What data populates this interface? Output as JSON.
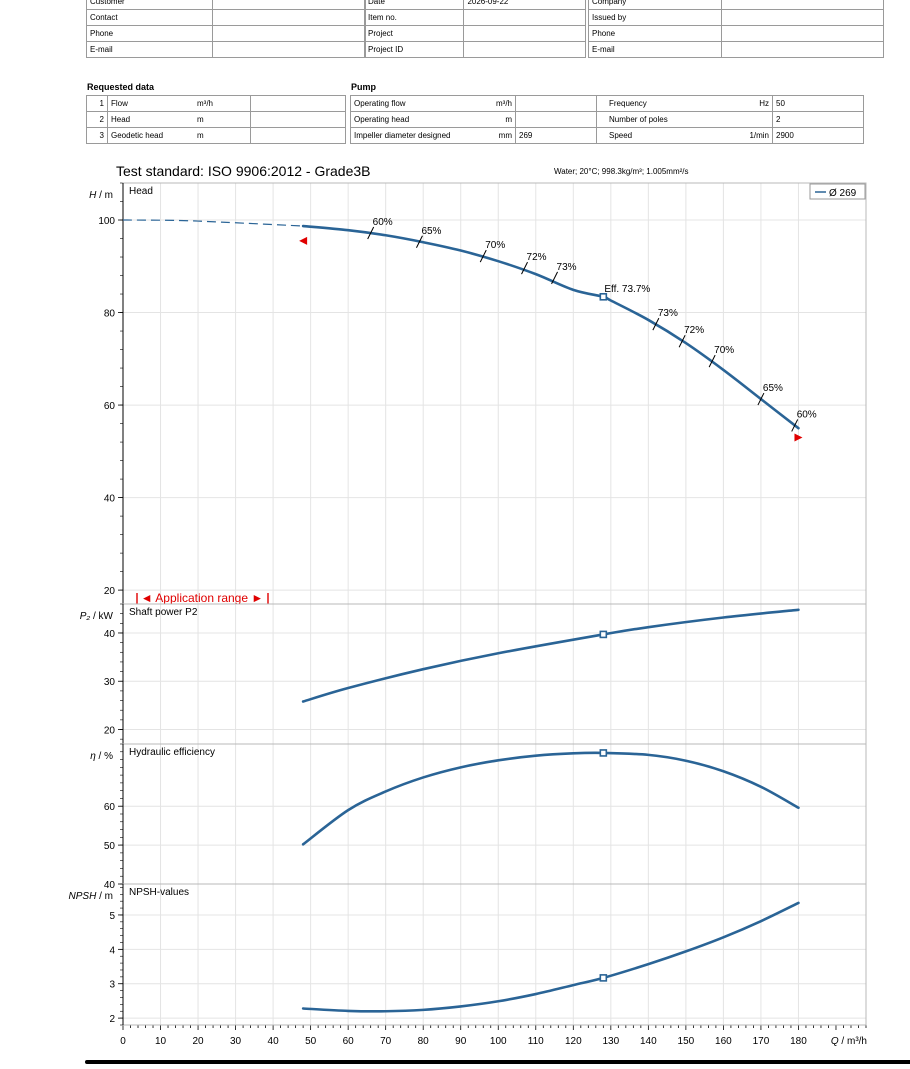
{
  "header": {
    "left_rows": [
      {
        "label": "Customer",
        "value": ""
      },
      {
        "label": "Contact",
        "value": ""
      },
      {
        "label": "Phone",
        "value": ""
      },
      {
        "label": "E-mail",
        "value": ""
      }
    ],
    "mid_rows": [
      {
        "label": "Date",
        "value": "2026-09-22"
      },
      {
        "label": "Item no.",
        "value": ""
      },
      {
        "label": "Project",
        "value": ""
      },
      {
        "label": "Project ID",
        "value": ""
      }
    ],
    "right_rows": [
      {
        "label": "Company",
        "value": ""
      },
      {
        "label": "Issued by",
        "value": ""
      },
      {
        "label": "Phone",
        "value": ""
      },
      {
        "label": "E-mail",
        "value": ""
      }
    ]
  },
  "requested": {
    "title": "Requested data",
    "rows": [
      {
        "n": "1",
        "label": "Flow",
        "unit": "m³/h",
        "value": ""
      },
      {
        "n": "2",
        "label": "Head",
        "unit": "m",
        "value": ""
      },
      {
        "n": "3",
        "label": "Geodetic head",
        "unit": "m",
        "value": ""
      }
    ]
  },
  "pump": {
    "title": "Pump",
    "left_rows": [
      {
        "label": "Operating flow",
        "unit": "m³/h",
        "value": ""
      },
      {
        "label": "Operating head",
        "unit": "m",
        "value": ""
      },
      {
        "label": "Impeller diameter designed",
        "unit": "mm",
        "value": "269"
      }
    ],
    "right_rows": [
      {
        "label": "Frequency",
        "unit": "Hz",
        "value": "50"
      },
      {
        "label": "Number of poles",
        "unit": "",
        "value": "2"
      },
      {
        "label": "Speed",
        "unit": "1/min",
        "value": "2900"
      }
    ]
  },
  "test_standard": "Test standard: ISO 9906:2012 - Grade3B",
  "fluid": "Water; 20°C; 998.3kg/m³; 1.005mm²/s",
  "colors": {
    "curve": "#2a6496",
    "marker": "#e00000",
    "grid": "#e4e4e4",
    "axis": "#000000"
  },
  "chart_data": [
    {
      "type": "line",
      "title": "Head",
      "ylabel_sym": "H",
      "ylabel_unit": "m",
      "ylim": [
        17,
        108
      ],
      "yticks": [
        20,
        40,
        60,
        80,
        100
      ],
      "xlim": [
        0,
        198
      ],
      "legend": "Ø 269",
      "legend_position": "top-right",
      "application_range_label": "Application range",
      "dashed_x": [
        0,
        15,
        30,
        48
      ],
      "dashed_y": [
        100,
        99.9,
        99.4,
        98.7
      ],
      "x": [
        48,
        60,
        70,
        80,
        90,
        100,
        110,
        120,
        128,
        130,
        140,
        150,
        160,
        170,
        180
      ],
      "y": [
        98.7,
        97.8,
        96.7,
        95.2,
        93.4,
        91.1,
        88.3,
        84.9,
        83.4,
        82.6,
        78.4,
        73.4,
        67.6,
        61.3,
        55.0
      ],
      "bep": {
        "x": 128,
        "y": 83.4,
        "label": "Eff.  73.7%"
      },
      "range_markers": [
        {
          "x": 48,
          "y": 95.5,
          "dir": "left"
        },
        {
          "x": 180,
          "y": 53,
          "dir": "right"
        }
      ],
      "efficiency_marks": [
        {
          "x": 66,
          "y": 97.2,
          "label": "60%"
        },
        {
          "x": 79,
          "y": 95.3,
          "label": "65%"
        },
        {
          "x": 96,
          "y": 92.2,
          "label": "70%"
        },
        {
          "x": 107,
          "y": 89.6,
          "label": "72%"
        },
        {
          "x": 115,
          "y": 87.5,
          "label": "73%"
        },
        {
          "x": 142,
          "y": 77.5,
          "label": "73%"
        },
        {
          "x": 149,
          "y": 73.8,
          "label": "72%"
        },
        {
          "x": 157,
          "y": 69.5,
          "label": "70%"
        },
        {
          "x": 170,
          "y": 61.3,
          "label": "65%"
        },
        {
          "x": 179,
          "y": 55.6,
          "label": "60%"
        }
      ]
    },
    {
      "type": "line",
      "title": "Shaft power P2",
      "ylabel_sym": "P₂",
      "ylabel_unit": "kW",
      "ylim": [
        17,
        46
      ],
      "yticks": [
        20,
        30,
        40
      ],
      "x": [
        48,
        60,
        80,
        100,
        128,
        140,
        160,
        180
      ],
      "y": [
        25.8,
        28.6,
        32.5,
        35.8,
        39.7,
        41.2,
        43.2,
        44.8
      ],
      "bep": {
        "x": 128,
        "y": 39.7
      }
    },
    {
      "type": "line",
      "title": "Hydraulic efficiency",
      "ylabel_sym": "η",
      "ylabel_unit": "%",
      "ylim": [
        40,
        76
      ],
      "yticks": [
        40,
        50,
        60
      ],
      "x": [
        48,
        60,
        70,
        80,
        90,
        100,
        110,
        120,
        128,
        140,
        150,
        160,
        170,
        180
      ],
      "y": [
        50.2,
        59.0,
        63.8,
        67.4,
        70.0,
        71.8,
        73.0,
        73.6,
        73.7,
        73.2,
        71.7,
        69.0,
        65.0,
        59.6
      ],
      "bep": {
        "x": 128,
        "y": 73.7
      }
    },
    {
      "type": "line",
      "title": "NPSH-values",
      "ylabel_sym": "NPSH",
      "ylabel_unit": "m",
      "ylim": [
        1.8,
        5.9
      ],
      "yticks": [
        2,
        3,
        4,
        5
      ],
      "x": [
        48,
        60,
        70,
        80,
        90,
        100,
        110,
        120,
        128,
        140,
        150,
        160,
        170,
        180
      ],
      "y": [
        2.28,
        2.21,
        2.2,
        2.24,
        2.34,
        2.49,
        2.7,
        2.96,
        3.17,
        3.57,
        3.94,
        4.35,
        4.82,
        5.35
      ],
      "bep": {
        "x": 128,
        "y": 3.17
      }
    }
  ],
  "x_axis": {
    "label_sym": "Q",
    "label_unit": "m³/h",
    "ticks": [
      0,
      10,
      20,
      30,
      40,
      50,
      60,
      70,
      80,
      90,
      100,
      110,
      120,
      130,
      140,
      150,
      160,
      170,
      180
    ]
  }
}
